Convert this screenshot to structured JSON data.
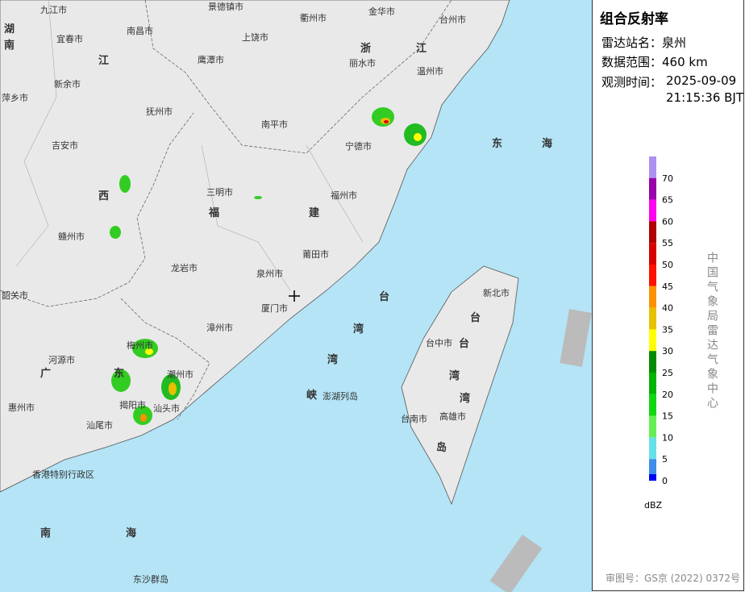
{
  "map": {
    "labels": [
      "九江市",
      "景德镇市",
      "衢州市",
      "金华市",
      "台州市",
      "湖",
      "南",
      "宜春市",
      "南昌市",
      "上饶市",
      "浙",
      "江",
      "丽水市",
      "江",
      "鹰潭市",
      "温州市",
      "新余市",
      "萍乡市",
      "抚州市",
      "南平市",
      "吉安市",
      "宁德市",
      "东",
      "海",
      "三明市",
      "西",
      "福",
      "建",
      "福州市",
      "赣州市",
      "莆田市",
      "龙岩市",
      "泉州市",
      "新北市",
      "台",
      "韶关市",
      "厦门市",
      "台",
      "漳州市",
      "湾",
      "台中市",
      "台",
      "梅州市",
      "河源市",
      "广",
      "东",
      "湾",
      "潮州市",
      "湾",
      "峡",
      "澎湖列岛",
      "湾",
      "惠州市",
      "揭阳市",
      "汕头市",
      "台南市",
      "高雄市",
      "岛",
      "汕尾市",
      "香港特别行政区",
      "南",
      "海",
      "东沙群岛"
    ]
  },
  "panel": {
    "title": "组合反射率",
    "rows": [
      {
        "label": "雷达站名：",
        "value": "泉州"
      },
      {
        "label": "数据范围：",
        "value": "460 km"
      }
    ],
    "time_label": "观测时间：",
    "time": [
      "2025-09-09",
      "21:15:36 BJT"
    ]
  },
  "legend": {
    "unit": "dBZ",
    "items": [
      {
        "value": 70,
        "color": "#ad90f0"
      },
      {
        "value": 65,
        "color": "#9a00aa"
      },
      {
        "value": 60,
        "color": "#ff00f0"
      },
      {
        "value": 55,
        "color": "#b00000"
      },
      {
        "value": 50,
        "color": "#d80000"
      },
      {
        "value": 45,
        "color": "#ff1000"
      },
      {
        "value": 40,
        "color": "#ff9000"
      },
      {
        "value": 35,
        "color": "#e8c000"
      },
      {
        "value": 30,
        "color": "#ffff00"
      },
      {
        "value": 25,
        "color": "#008c00"
      },
      {
        "value": 20,
        "color": "#00b400"
      },
      {
        "value": 15,
        "color": "#10d810"
      },
      {
        "value": 10,
        "color": "#66ee55"
      },
      {
        "value": 5,
        "color": "#66e0e8"
      },
      {
        "value": 0,
        "color": "#3c8ee8"
      }
    ],
    "bottom_color": "#0000f0"
  },
  "credit": "中国气象局雷达气象中心",
  "approval": "审图号：GS京 (2022) 0372号"
}
